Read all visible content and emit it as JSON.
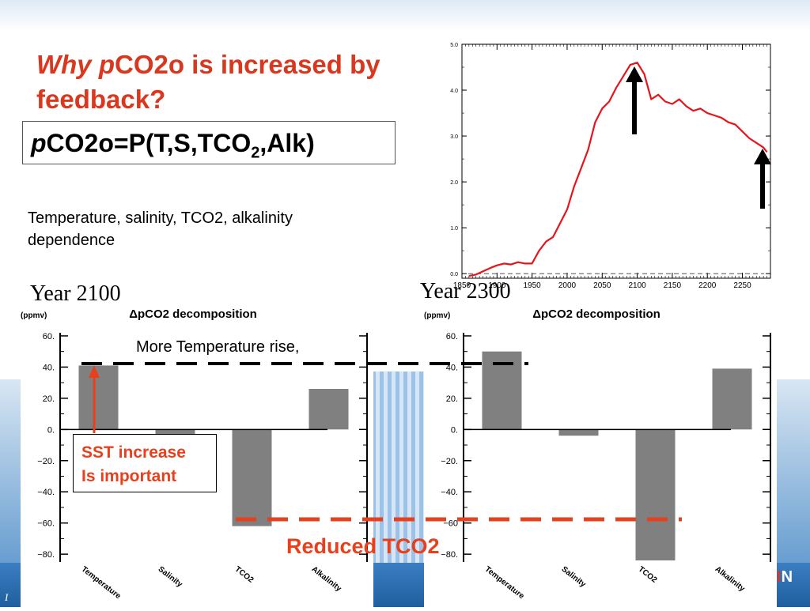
{
  "slide": {
    "title_italic": "Why p",
    "title_rest": "CO2o is increased by feedback?",
    "formula_italic": "p",
    "formula_main": "CO2o=P(T,S,TCO",
    "formula_sub": "2",
    "formula_tail": ",Alk)",
    "description": "Temperature, salinity, TCO2, alkalinity dependence",
    "year_left": "Year 2100",
    "year_right": "Year 2300",
    "callout_temperature": "More Temperature rise,",
    "sst_line1": "SST increase",
    "sst_line2": "Is important",
    "reduced_label": "Reduced TCO2",
    "footer_initial": "I",
    "footer_logo_main": "I",
    "footer_logo_end": "N"
  },
  "chart_data": [
    {
      "type": "line",
      "x_ticks": [
        "1850",
        "1900",
        "1950",
        "2000",
        "2050",
        "2100",
        "2150",
        "2200",
        "2250"
      ],
      "y_ticks": [
        "0.0",
        "1.0",
        "2.0",
        "3.0",
        "4.0",
        "5.0"
      ],
      "xlim": [
        1850,
        2290
      ],
      "ylim": [
        -0.1,
        5.0
      ],
      "reference_line": 0.0,
      "line_color": "#e8141c",
      "x": [
        1860,
        1870,
        1880,
        1890,
        1900,
        1910,
        1920,
        1930,
        1940,
        1950,
        1960,
        1970,
        1980,
        1990,
        2000,
        2010,
        2020,
        2030,
        2040,
        2050,
        2060,
        2070,
        2080,
        2090,
        2100,
        2110,
        2120,
        2130,
        2140,
        2150,
        2160,
        2170,
        2180,
        2190,
        2200,
        2210,
        2220,
        2230,
        2240,
        2250,
        2260,
        2270,
        2280,
        2285
      ],
      "y": [
        -0.05,
        -0.02,
        0.05,
        0.12,
        0.18,
        0.22,
        0.2,
        0.25,
        0.22,
        0.22,
        0.5,
        0.7,
        0.8,
        1.1,
        1.4,
        1.9,
        2.3,
        2.7,
        3.3,
        3.6,
        3.75,
        4.05,
        4.3,
        4.55,
        4.6,
        4.35,
        3.8,
        3.9,
        3.75,
        3.7,
        3.8,
        3.65,
        3.55,
        3.6,
        3.5,
        3.45,
        3.4,
        3.3,
        3.25,
        3.1,
        2.95,
        2.85,
        2.75,
        2.65
      ]
    },
    {
      "type": "bar",
      "title": "ΔpCO2 decomposition",
      "unit": "(ppmv)",
      "categories": [
        "Temperature",
        "Salinity",
        "TCO2",
        "Alkalinity"
      ],
      "values": [
        41,
        -3,
        -62,
        26
      ],
      "ylim": [
        -85,
        62
      ],
      "y_ticks": [
        "60.",
        "40.",
        "20.",
        "0.",
        "−20.",
        "−40.",
        "−60.",
        "−80."
      ],
      "bar_color": "#808080"
    },
    {
      "type": "bar",
      "title": "ΔpCO2 decomposition",
      "unit": "(ppmv)",
      "categories": [
        "Temperature",
        "Salinity",
        "TCO2",
        "Alkalinity"
      ],
      "values": [
        50,
        -4,
        -84,
        39
      ],
      "ylim": [
        -85,
        62
      ],
      "y_ticks": [
        "60.",
        "40.",
        "20.",
        "0.",
        "−20.",
        "−40.",
        "−60",
        "−80."
      ],
      "bar_color": "#808080"
    }
  ]
}
